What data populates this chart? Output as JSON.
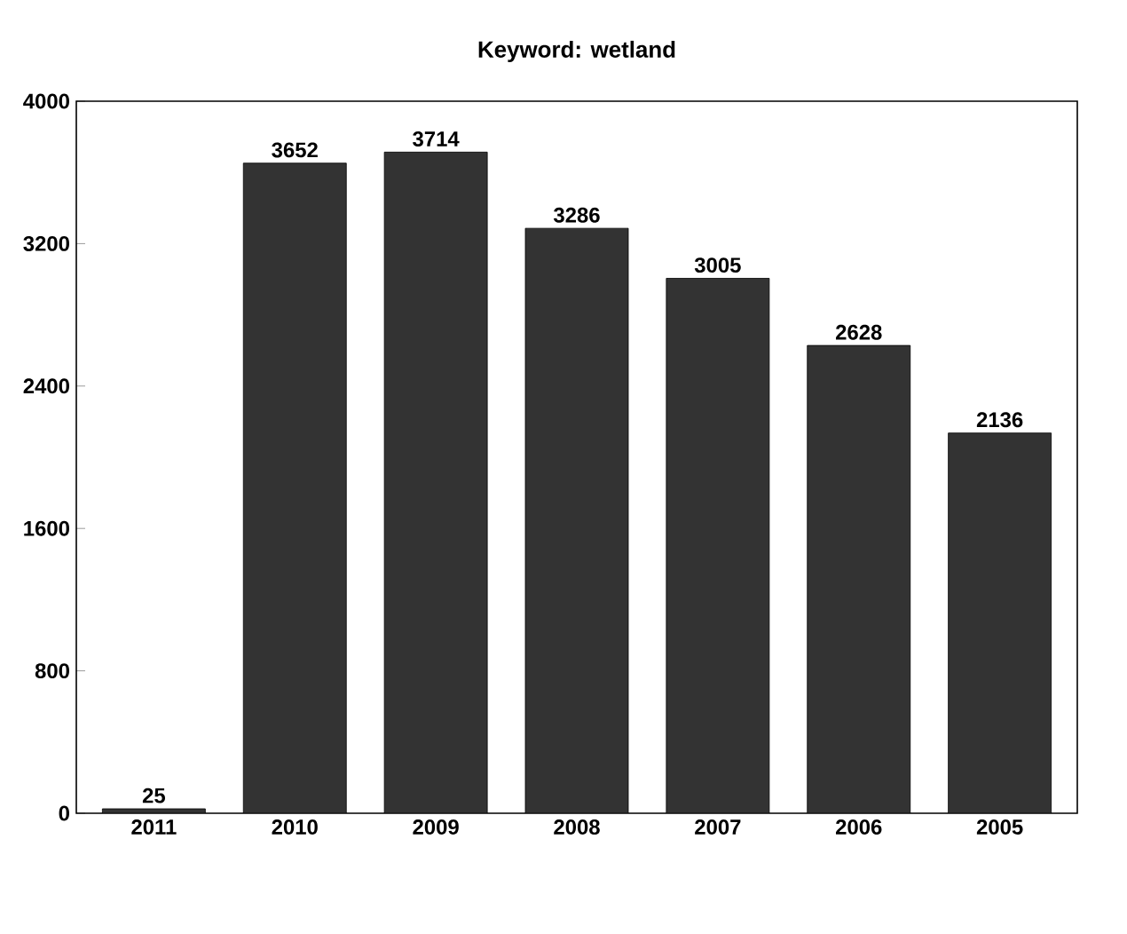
{
  "chart_data": {
    "type": "bar",
    "title": "Keyword: wetland",
    "categories": [
      "2011",
      "2010",
      "2009",
      "2008",
      "2007",
      "2006",
      "2005"
    ],
    "values": [
      25,
      3652,
      3714,
      3286,
      3005,
      2628,
      2136
    ],
    "color": "#333333",
    "ylim": [
      0,
      4000
    ],
    "yticks": [
      0,
      800,
      1600,
      2400,
      3200,
      4000
    ],
    "data_labels": true
  }
}
